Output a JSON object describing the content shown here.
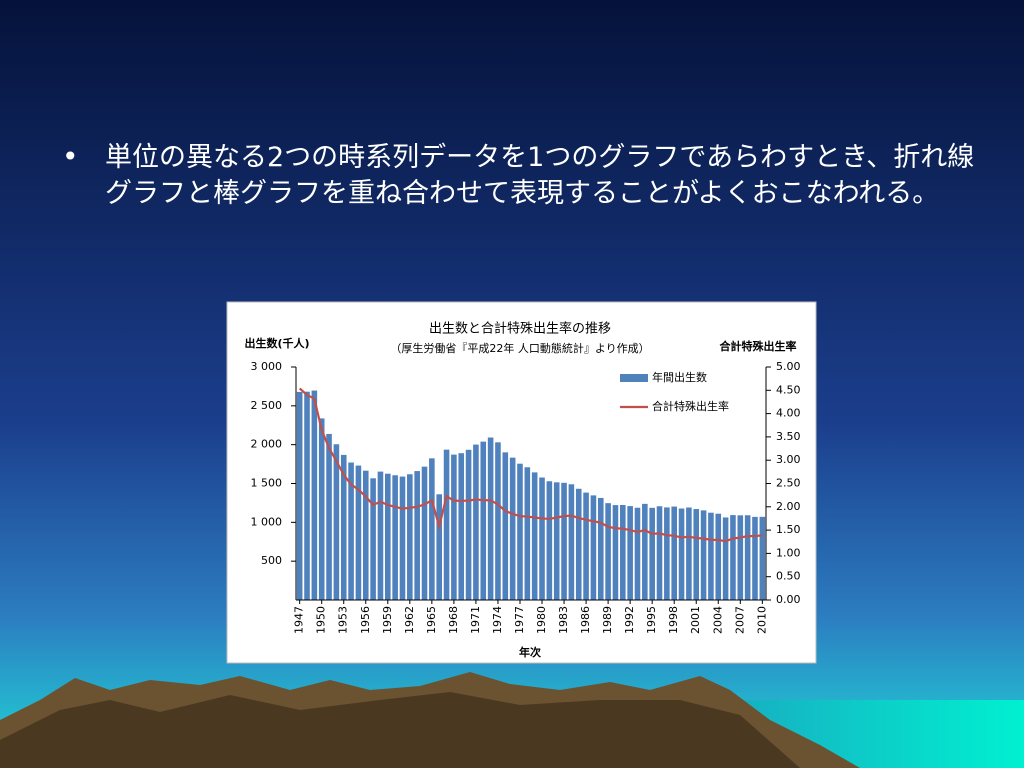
{
  "bullet_text": "単位の異なる2つの時系列データを1つのグラフであらわすとき、折れ線グラフと棒グラフを重ね合わせて表現することがよくおこなわれる。",
  "chart_data": {
    "type": "bar_line",
    "title": "出生数と合計特殊出生率の推移",
    "subtitle": "（厚生労働省『平成22年 人口動態統計』より作成）",
    "y_label": "出生数(千人)",
    "y2_label": "合計特殊出生率",
    "x_label": "年次",
    "legend": "upper right",
    "categories": [
      "1947",
      null,
      null,
      "1950",
      null,
      null,
      "1953",
      null,
      null,
      "1956",
      null,
      null,
      "1959",
      null,
      null,
      "1962",
      null,
      null,
      "1965",
      null,
      null,
      "1968",
      null,
      null,
      "1971",
      null,
      null,
      "1974",
      null,
      null,
      "1977",
      null,
      null,
      "1980",
      null,
      null,
      "1983",
      null,
      null,
      "1986",
      null,
      null,
      "1989",
      null,
      null,
      "1992",
      null,
      null,
      "1995",
      null,
      null,
      "1998",
      null,
      null,
      "2001",
      null,
      null,
      "2004",
      null,
      null,
      "2007",
      null,
      null,
      "2010"
    ],
    "series": [
      {
        "name": "年間出生数",
        "type": "bar",
        "color": "#4f81bd",
        "values": [
          2679,
          2682,
          2697,
          2338,
          2138,
          2005,
          1868,
          1770,
          1731,
          1665,
          1567,
          1653,
          1626,
          1606,
          1589,
          1619,
          1660,
          1717,
          1824,
          1361,
          1936,
          1872,
          1890,
          1934,
          2001,
          2039,
          2092,
          2030,
          1901,
          1833,
          1755,
          1709,
          1643,
          1577,
          1529,
          1515,
          1509,
          1490,
          1432,
          1383,
          1347,
          1314,
          1247,
          1222,
          1223,
          1209,
          1188,
          1238,
          1187,
          1207,
          1192,
          1203,
          1178,
          1191,
          1171,
          1154,
          1124,
          1111,
          1063,
          1093,
          1090,
          1091,
          1070,
          1071
        ]
      },
      {
        "name": "合計特殊出生率",
        "type": "line",
        "axis": "y2",
        "color": "#c0504d",
        "values": [
          4.54,
          4.4,
          4.32,
          3.65,
          3.26,
          2.98,
          2.69,
          2.48,
          2.37,
          2.22,
          2.04,
          2.11,
          2.04,
          2.0,
          1.96,
          1.98,
          2.0,
          2.05,
          2.14,
          1.58,
          2.23,
          2.13,
          2.13,
          2.13,
          2.16,
          2.14,
          2.14,
          2.05,
          1.91,
          1.85,
          1.8,
          1.79,
          1.77,
          1.75,
          1.74,
          1.77,
          1.8,
          1.81,
          1.76,
          1.72,
          1.69,
          1.66,
          1.57,
          1.54,
          1.53,
          1.5,
          1.46,
          1.5,
          1.42,
          1.43,
          1.39,
          1.38,
          1.34,
          1.36,
          1.33,
          1.32,
          1.29,
          1.29,
          1.26,
          1.32,
          1.34,
          1.37,
          1.37,
          1.39
        ]
      }
    ],
    "ylim": [
      0,
      3000
    ],
    "yticks": [
      500,
      {
        "value": 1000,
        "label": "1 000"
      },
      {
        "value": 1500,
        "label": "1 500"
      },
      {
        "value": 2000,
        "label": "2 000"
      },
      {
        "value": 2500,
        "label": "2 500"
      },
      {
        "value": 3000,
        "label": "3 000"
      }
    ],
    "y2lim": [
      0,
      5
    ],
    "y2ticks": [
      {
        "value": 0,
        "label": "0.00"
      },
      {
        "value": 0.5,
        "label": "0.50"
      },
      {
        "value": 1,
        "label": "1.00"
      },
      {
        "value": 1.5,
        "label": "1.50"
      },
      {
        "value": 2,
        "label": "2.00"
      },
      {
        "value": 2.5,
        "label": "2.50"
      },
      {
        "value": 3,
        "label": "3.00"
      },
      {
        "value": 3.5,
        "label": "3.50"
      },
      {
        "value": 4,
        "label": "4.00"
      },
      {
        "value": 4.5,
        "label": "4.50"
      },
      {
        "value": 5,
        "label": "5.00"
      }
    ]
  }
}
